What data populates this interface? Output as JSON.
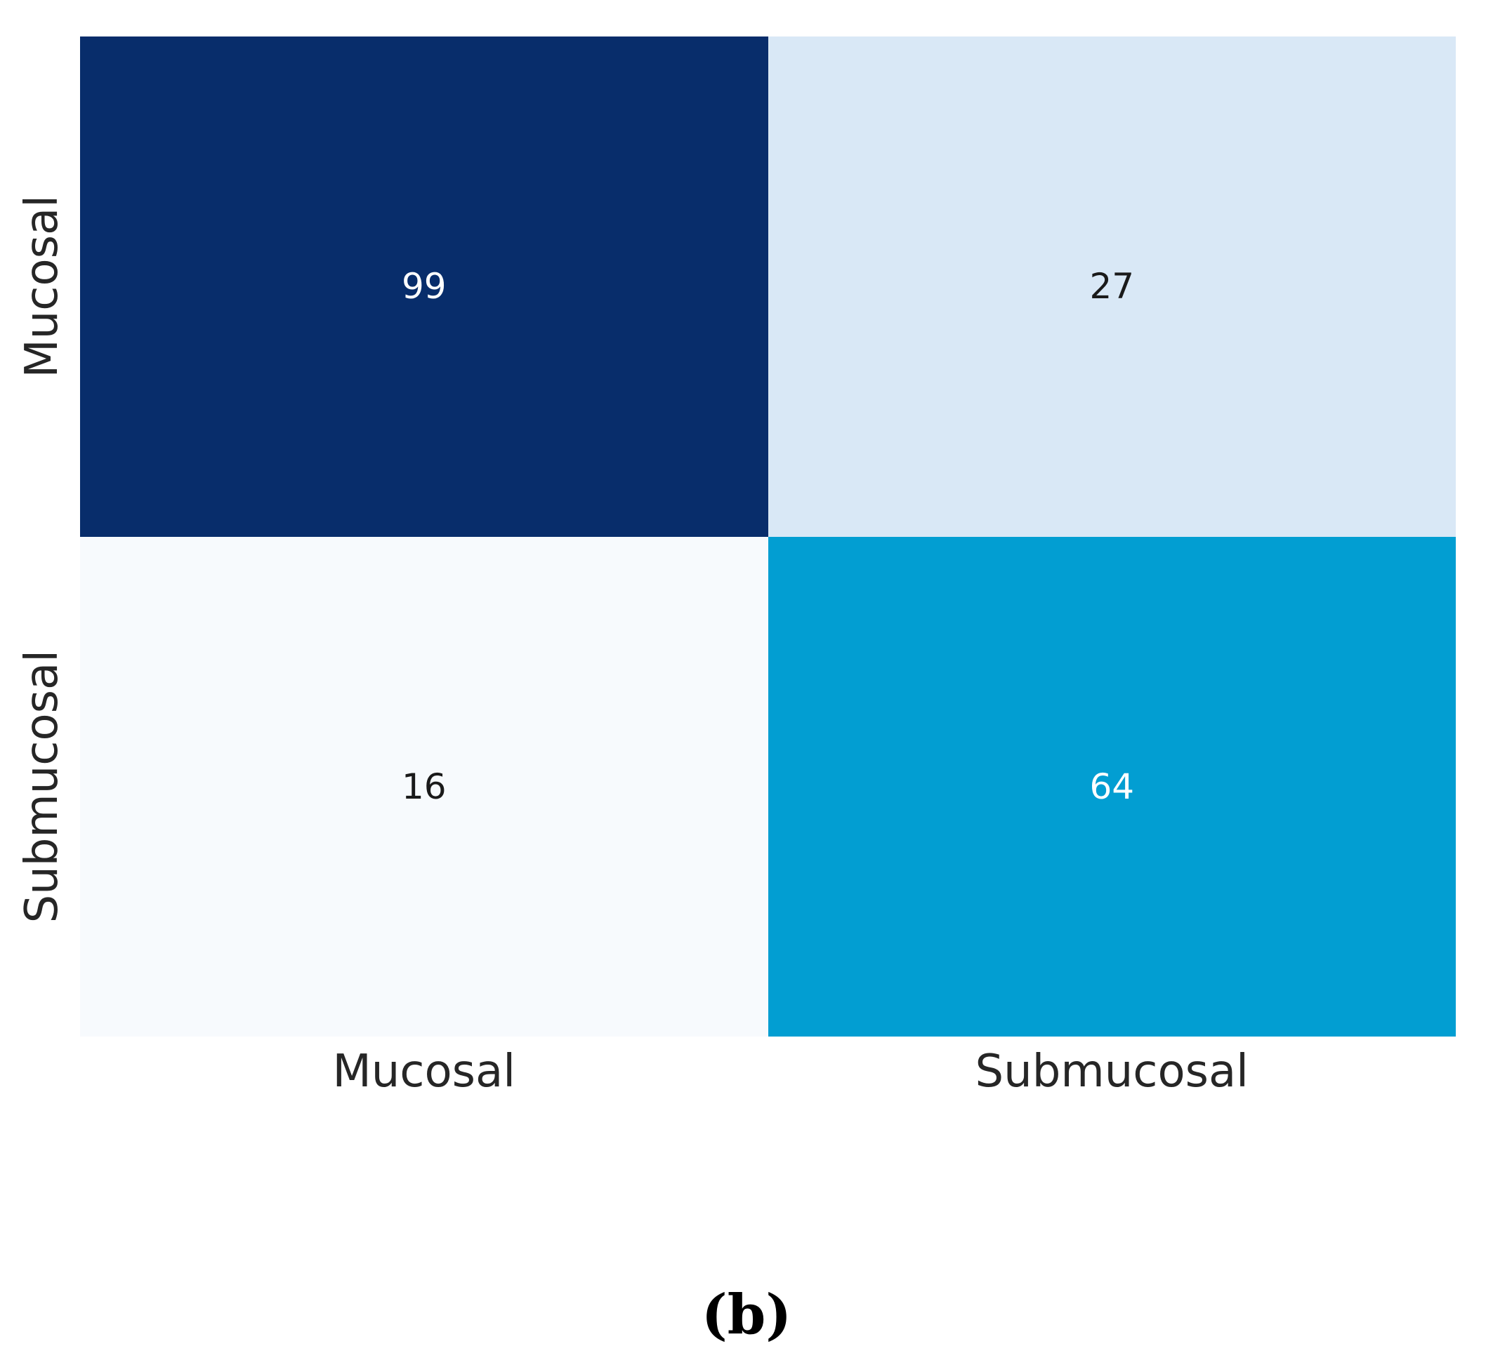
{
  "chart_data": {
    "type": "heatmap",
    "title": "",
    "x_categories": [
      "Mucosal",
      "Submucosal"
    ],
    "y_categories": [
      "Mucosal",
      "Submucosal"
    ],
    "values": [
      [
        99,
        27
      ],
      [
        16,
        64
      ]
    ],
    "cell_colors": [
      [
        "#082d6b",
        "#d9e8f6"
      ],
      [
        "#f7fafd",
        "#029ed2"
      ]
    ],
    "cell_text_colors": [
      [
        "#ffffff",
        "#1a1a1a"
      ],
      [
        "#1a1a1a",
        "#ffffff"
      ]
    ],
    "axis_text_color": "#262626",
    "legend_position": "none",
    "grid": "off"
  },
  "caption": "(b)"
}
